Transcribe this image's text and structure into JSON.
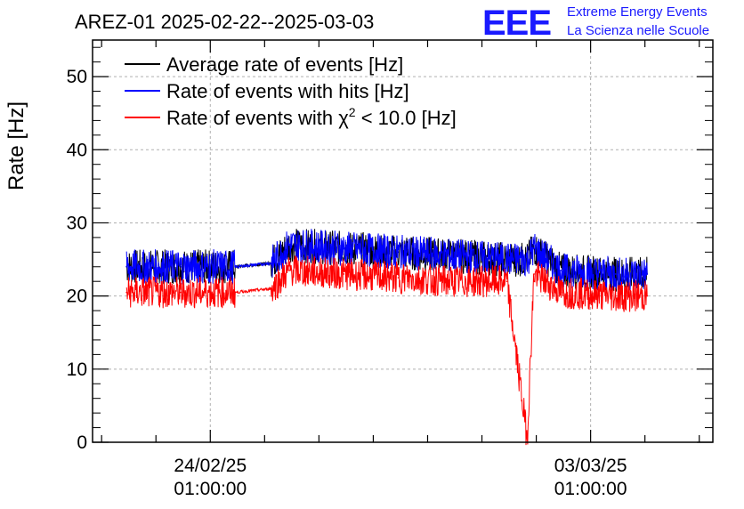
{
  "chart_data": {
    "type": "line",
    "title": "AREZ-01 2025-02-22--2025-03-03",
    "ylabel": "Rate [Hz]",
    "xlabel": "",
    "ylim": [
      0,
      55
    ],
    "yticks": [
      0,
      10,
      20,
      30,
      40,
      50
    ],
    "xtick_labels": [
      {
        "date": "24/02/25",
        "time": "01:00:00"
      },
      {
        "date": "03/03/25",
        "time": "01:00:00"
      }
    ],
    "grid": true,
    "legend_position": "top-left",
    "branding": {
      "logo": "EEE",
      "line1": "Extreme Energy Events",
      "line2": "La Scienza nelle Scuole"
    },
    "series": [
      {
        "name": "Average rate of events [Hz]",
        "color": "#000000",
        "x": [
          "2025-02-22 12:00",
          "2025-02-23 12:00",
          "2025-02-24 12:00",
          "2025-02-25 04:00",
          "2025-02-25 12:00",
          "2025-02-26 12:00",
          "2025-02-27 12:00",
          "2025-02-28 12:00",
          "2025-03-01 12:00",
          "2025-03-01 21:00",
          "2025-03-02 00:00",
          "2025-03-02 12:00",
          "2025-03-03 12:00",
          "2025-03-04 02:00"
        ],
        "values": [
          24,
          24,
          24,
          24.5,
          27,
          26.5,
          26,
          25.5,
          25,
          25,
          26.5,
          23.5,
          23,
          23
        ]
      },
      {
        "name": "Rate of events with hits [Hz]",
        "color": "#0000ff",
        "x": [
          "2025-02-22 12:00",
          "2025-02-23 12:00",
          "2025-02-24 12:00",
          "2025-02-25 04:00",
          "2025-02-25 12:00",
          "2025-02-26 12:00",
          "2025-02-27 12:00",
          "2025-02-28 12:00",
          "2025-03-01 12:00",
          "2025-03-01 21:00",
          "2025-03-02 00:00",
          "2025-03-02 12:00",
          "2025-03-03 12:00",
          "2025-03-04 02:00"
        ],
        "values": [
          24,
          24,
          24,
          24.5,
          27,
          26.5,
          26,
          25.5,
          25,
          25,
          26.5,
          23.5,
          23,
          23
        ]
      },
      {
        "name": "Rate of events with χ² < 10.0 [Hz]",
        "color": "#ff0000",
        "x": [
          "2025-02-22 12:00",
          "2025-02-23 12:00",
          "2025-02-24 12:00",
          "2025-02-25 04:00",
          "2025-02-25 12:00",
          "2025-02-26 12:00",
          "2025-02-27 12:00",
          "2025-02-28 12:00",
          "2025-03-01 12:00",
          "2025-03-01 21:00",
          "2025-03-02 00:00",
          "2025-03-02 12:00",
          "2025-03-03 12:00",
          "2025-03-04 02:00"
        ],
        "values": [
          20.5,
          20.5,
          20.5,
          21,
          23.5,
          23,
          22.5,
          22,
          22,
          0.5,
          23,
          20.5,
          20,
          20
        ]
      }
    ],
    "legend_entries": [
      {
        "pre": "Average rate of events [Hz]",
        "sym": "",
        "sup": "",
        "post": ""
      },
      {
        "pre": "Rate of events with hits [Hz]",
        "sym": "",
        "sup": "",
        "post": ""
      },
      {
        "pre": "Rate of events with ",
        "sym": "χ",
        "sup": "2",
        "post": " < 10.0 [Hz]"
      }
    ]
  }
}
